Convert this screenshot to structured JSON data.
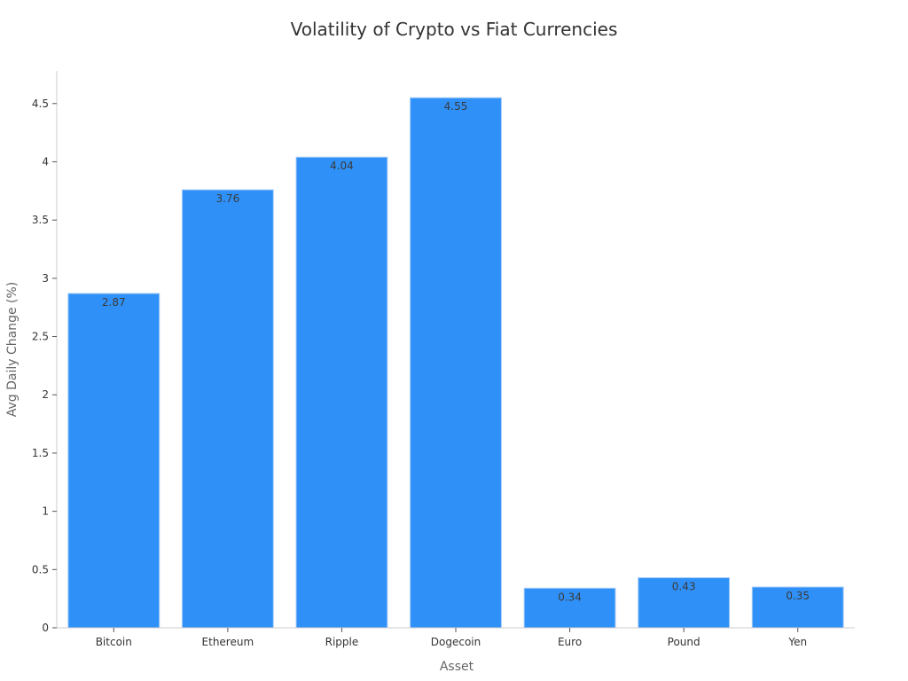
{
  "chart_data": {
    "type": "bar",
    "title": "Volatility of Crypto vs Fiat Currencies",
    "xlabel": "Asset",
    "ylabel": "Avg Daily Change (%)",
    "categories": [
      "Bitcoin",
      "Ethereum",
      "Ripple",
      "Dogecoin",
      "Euro",
      "Pound",
      "Yen"
    ],
    "values": [
      2.87,
      3.76,
      4.04,
      4.55,
      0.34,
      0.43,
      0.35
    ],
    "value_labels": [
      "2.87",
      "3.76",
      "4.04",
      "4.55",
      "0.34",
      "0.43",
      "0.35"
    ],
    "yticks": [
      0,
      0.5,
      1,
      1.5,
      2,
      2.5,
      3,
      3.5,
      4,
      4.5
    ],
    "ytick_labels": [
      "0",
      "0.5",
      "1",
      "1.5",
      "2",
      "2.5",
      "3",
      "3.5",
      "4",
      "4.5"
    ],
    "ylim": [
      0,
      4.78
    ],
    "grid": false,
    "legend": "none",
    "colors": {
      "bar": "#2f91f8",
      "bar_edge": "#a7cdf6",
      "axis": "#cccccc"
    }
  }
}
